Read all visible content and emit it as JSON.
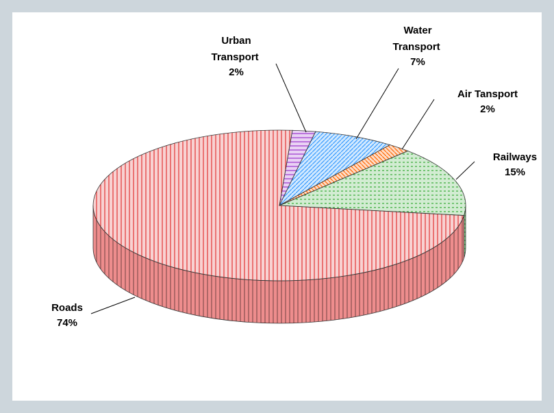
{
  "chart_data": {
    "type": "pie3d",
    "categories": [
      "Urban Transport",
      "Water Transport",
      "Air Tansport",
      "Railways",
      "Roads"
    ],
    "values": [
      2,
      7,
      2,
      15,
      74
    ],
    "value_labels": [
      "2%",
      "7%",
      "2%",
      "15%",
      "74%"
    ],
    "colors": [
      "#9933cc",
      "#3399ff",
      "#ff6600",
      "#33aa33",
      "#e03030"
    ]
  }
}
